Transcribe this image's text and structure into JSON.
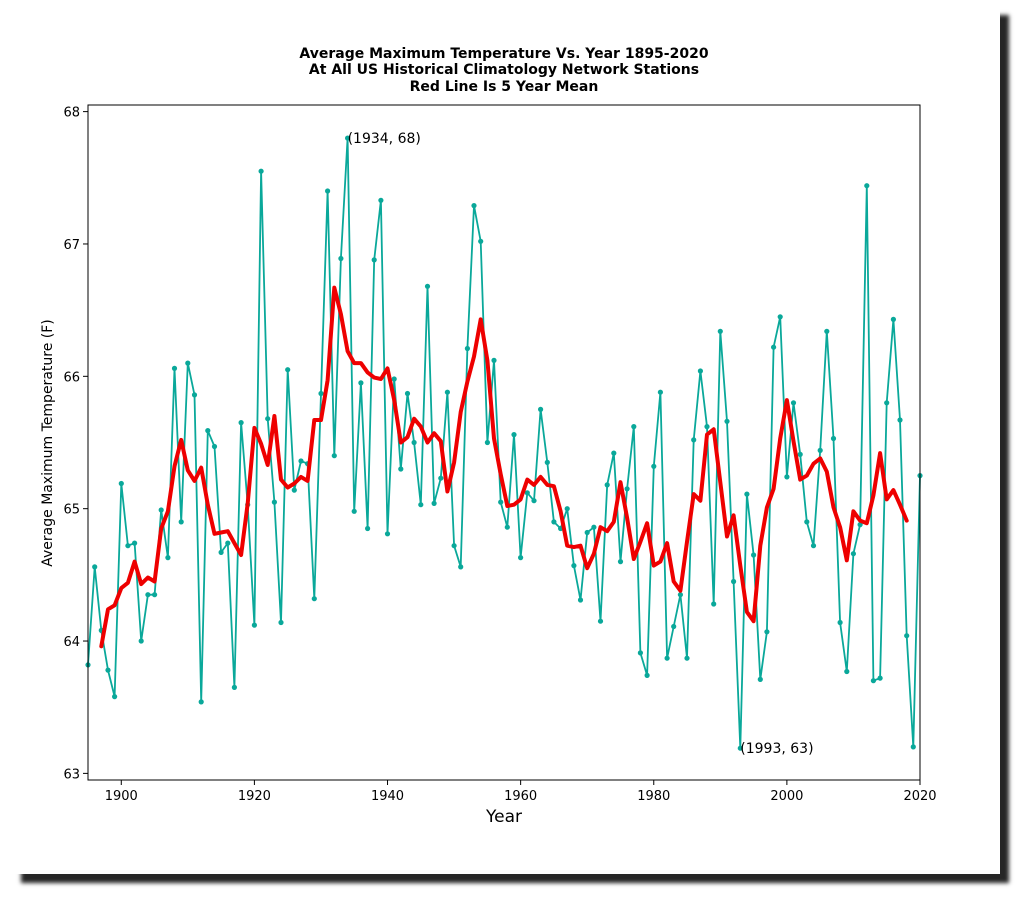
{
  "chart_data": {
    "type": "line",
    "title": [
      "Average Maximum Temperature Vs. Year 1895-2020",
      "At All US Historical Climatology Network Stations",
      "Red Line Is 5 Year Mean"
    ],
    "xlabel": "Year",
    "ylabel": "Average Maximum Temperature (F)",
    "xlim": [
      1895,
      2020
    ],
    "ylim": [
      62.95,
      68.05
    ],
    "xticks": [
      1900,
      1920,
      1940,
      1960,
      1980,
      2000,
      2020
    ],
    "yticks": [
      63,
      64,
      65,
      66,
      67,
      68
    ],
    "grid": false,
    "colors": {
      "annual": "#0aa89a",
      "mean": "#ee0000"
    },
    "series": [
      {
        "x": [
          1895,
          1896,
          1897,
          1898,
          1899,
          1900,
          1901,
          1902,
          1903,
          1904,
          1905,
          1906,
          1907,
          1908,
          1909,
          1910,
          1911,
          1912,
          1913,
          1914,
          1915,
          1916,
          1917,
          1918,
          1919,
          1920,
          1921,
          1922,
          1923,
          1924,
          1925,
          1926,
          1927,
          1928,
          1929,
          1930,
          1931,
          1932,
          1933,
          1934,
          1935,
          1936,
          1937,
          1938,
          1939,
          1940,
          1941,
          1942,
          1943,
          1944,
          1945,
          1946,
          1947,
          1948,
          1949,
          1950,
          1951,
          1952,
          1953,
          1954,
          1955,
          1956,
          1957,
          1958,
          1959,
          1960,
          1961,
          1962,
          1963,
          1964,
          1965,
          1966,
          1967,
          1968,
          1969,
          1970,
          1971,
          1972,
          1973,
          1974,
          1975,
          1976,
          1977,
          1978,
          1979,
          1980,
          1981,
          1982,
          1983,
          1984,
          1985,
          1986,
          1987,
          1988,
          1989,
          1990,
          1991,
          1992,
          1993,
          1994,
          1995,
          1996,
          1997,
          1998,
          1999,
          2000,
          2001,
          2002,
          2003,
          2004,
          2005,
          2006,
          2007,
          2008,
          2009,
          2010,
          2011,
          2012,
          2013,
          2014,
          2015,
          2016,
          2017,
          2018,
          2019,
          2020
        ],
        "values": [
          63.82,
          64.56,
          64.08,
          63.78,
          63.58,
          65.19,
          64.72,
          64.74,
          64.0,
          64.35,
          64.35,
          64.99,
          64.63,
          66.06,
          64.9,
          66.1,
          65.86,
          63.54,
          65.59,
          65.47,
          64.67,
          64.74,
          63.65,
          65.65,
          65.03,
          64.12,
          67.55,
          65.68,
          65.05,
          64.14,
          66.05,
          65.14,
          65.36,
          65.34,
          64.32,
          65.87,
          67.4,
          65.4,
          66.89,
          67.8,
          64.98,
          65.95,
          64.85,
          66.88,
          67.33,
          64.81,
          65.98,
          65.3,
          65.87,
          65.5,
          65.03,
          66.68,
          65.04,
          65.23,
          65.88,
          64.72,
          64.56,
          66.21,
          67.29,
          67.02,
          65.5,
          66.12,
          65.05,
          64.86,
          65.56,
          64.63,
          65.12,
          65.06,
          65.75,
          65.35,
          64.9,
          64.85,
          65.0,
          64.57,
          64.31,
          64.82,
          64.86,
          64.15,
          65.18,
          65.42,
          64.6,
          65.15,
          65.62,
          63.91,
          63.74,
          65.32,
          65.88,
          63.87,
          64.11,
          64.35,
          63.87,
          65.52,
          66.04,
          65.62,
          64.28,
          66.34,
          65.66,
          64.45,
          63.19,
          65.11,
          64.65,
          63.71,
          64.07,
          66.22,
          66.45,
          65.24,
          65.8,
          65.41,
          64.9,
          64.72,
          65.44,
          66.34,
          65.53,
          64.14,
          63.77,
          64.66,
          64.88,
          67.44,
          63.7,
          63.72,
          65.8,
          66.43,
          65.67,
          64.04,
          63.2,
          65.25
        ]
      },
      {
        "x": [
          1897,
          1898,
          1899,
          1900,
          1901,
          1902,
          1903,
          1904,
          1905,
          1906,
          1907,
          1908,
          1909,
          1910,
          1911,
          1912,
          1913,
          1914,
          1915,
          1916,
          1917,
          1918,
          1919,
          1920,
          1921,
          1922,
          1923,
          1924,
          1925,
          1926,
          1927,
          1928,
          1929,
          1930,
          1931,
          1932,
          1933,
          1934,
          1935,
          1936,
          1937,
          1938,
          1939,
          1940,
          1941,
          1942,
          1943,
          1944,
          1945,
          1946,
          1947,
          1948,
          1949,
          1950,
          1951,
          1952,
          1953,
          1954,
          1955,
          1956,
          1957,
          1958,
          1959,
          1960,
          1961,
          1962,
          1963,
          1964,
          1965,
          1966,
          1967,
          1968,
          1969,
          1970,
          1971,
          1972,
          1973,
          1974,
          1975,
          1976,
          1977,
          1978,
          1979,
          1980,
          1981,
          1982,
          1983,
          1984,
          1985,
          1986,
          1987,
          1988,
          1989,
          1990,
          1991,
          1992,
          1993,
          1994,
          1995,
          1996,
          1997,
          1998,
          1999,
          2000,
          2001,
          2002,
          2003,
          2004,
          2005,
          2006,
          2007,
          2008,
          2009,
          2010,
          2011,
          2012,
          2013,
          2014,
          2015,
          2016,
          2017,
          2018
        ],
        "values": [
          63.96,
          64.24,
          64.27,
          64.4,
          64.44,
          64.6,
          64.43,
          64.48,
          64.45,
          64.85,
          64.98,
          65.32,
          65.52,
          65.29,
          65.21,
          65.31,
          65.03,
          64.81,
          64.82,
          64.83,
          64.74,
          64.65,
          65.04,
          65.61,
          65.49,
          65.33,
          65.7,
          65.22,
          65.16,
          65.19,
          65.24,
          65.21,
          65.67,
          65.67,
          65.97,
          66.67,
          66.47,
          66.19,
          66.1,
          66.1,
          66.03,
          65.99,
          65.98,
          66.06,
          65.82,
          65.5,
          65.54,
          65.68,
          65.62,
          65.5,
          65.57,
          65.51,
          65.13,
          65.35,
          65.73,
          65.96,
          66.15,
          66.43,
          66.12,
          65.53,
          65.26,
          65.02,
          65.03,
          65.07,
          65.22,
          65.18,
          65.24,
          65.18,
          65.17,
          64.98,
          64.72,
          64.71,
          64.72,
          64.55,
          64.66,
          64.86,
          64.83,
          64.9,
          65.2,
          64.93,
          64.62,
          64.75,
          64.89,
          64.57,
          64.6,
          64.74,
          64.45,
          64.38,
          64.75,
          65.11,
          65.06,
          65.56,
          65.6,
          65.2,
          64.79,
          64.95,
          64.57,
          64.22,
          64.15,
          64.72,
          65.01,
          65.15,
          65.53,
          65.82,
          65.51,
          65.22,
          65.25,
          65.34,
          65.38,
          65.28,
          65.01,
          64.86,
          64.61,
          64.98,
          64.91,
          64.89,
          65.1,
          65.42,
          65.07,
          65.14,
          65.03,
          64.91
        ]
      }
    ],
    "annotations": [
      {
        "x": 1934,
        "y": 67.8,
        "text": "(1934, 68)"
      },
      {
        "x": 1993,
        "y": 63.19,
        "text": "(1993, 63)"
      }
    ]
  }
}
